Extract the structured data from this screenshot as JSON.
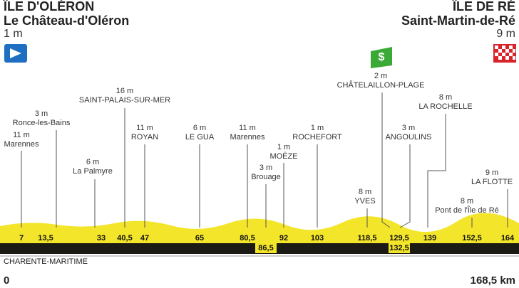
{
  "start": {
    "region": "ÎLE D'OLÉRON",
    "town": "Le Château-d'Oléron",
    "altitude": "1 m"
  },
  "finish": {
    "region": "ÎLE DE RÉ",
    "town": "Saint-Martin-de-Ré",
    "altitude": "9 m"
  },
  "waypoints": [
    {
      "altitude": "11 m",
      "name": "Marennes",
      "km": "7"
    },
    {
      "altitude": "3 m",
      "name": "Ronce-les-Bains",
      "km": "13,5"
    },
    {
      "altitude": "6 m",
      "name": "La Palmyre",
      "km": "33"
    },
    {
      "altitude": "16 m",
      "name": "SAINT-PALAIS-SUR-MER",
      "km": "40,5"
    },
    {
      "altitude": "11 m",
      "name": "ROYAN",
      "km": "47"
    },
    {
      "altitude": "6 m",
      "name": "LE GUA",
      "km": "65"
    },
    {
      "altitude": "11 m",
      "name": "Marennes",
      "km": "80,5"
    },
    {
      "altitude": "3 m",
      "name": "Brouage",
      "km": "86,5"
    },
    {
      "altitude": "1 m",
      "name": "MOËZE",
      "km": "92"
    },
    {
      "altitude": "1 m",
      "name": "ROCHEFORT",
      "km": "103"
    },
    {
      "altitude": "8 m",
      "name": "YVES",
      "km": "118,5"
    },
    {
      "altitude": "2 m",
      "name": "CHÂTELAILLON-PLAGE",
      "km": "129,5"
    },
    {
      "altitude": "3 m",
      "name": "ANGOULINS",
      "km": "132,5"
    },
    {
      "altitude": "8 m",
      "name": "LA ROCHELLE",
      "km": "139"
    },
    {
      "altitude": "8 m",
      "name": "Pont de l'Île de Ré",
      "km": "152,5"
    },
    {
      "altitude": "9 m",
      "name": "LA FLOTTE",
      "km": "164"
    }
  ],
  "department": "CHARENTE-MARITIME",
  "distance_start": "0",
  "distance_end": "168,5 km"
}
